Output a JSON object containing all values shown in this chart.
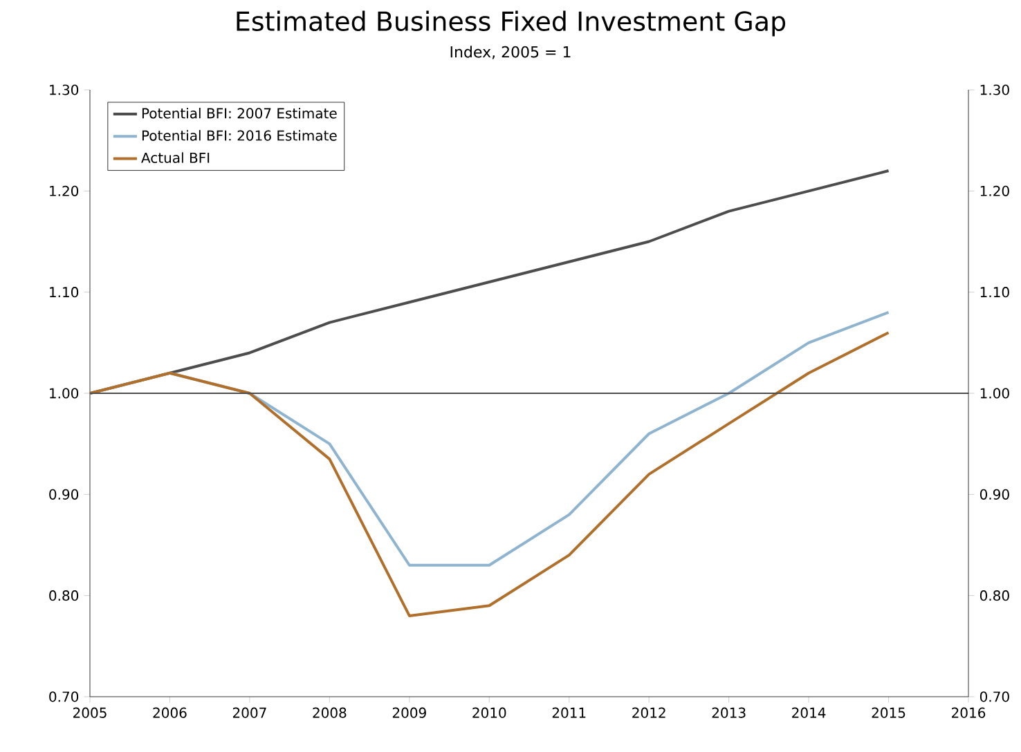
{
  "chart_data": {
    "type": "line",
    "title": "Estimated Business Fixed Investment Gap",
    "subtitle": "Index, 2005 = 1",
    "x": [
      2005,
      2006,
      2007,
      2008,
      2009,
      2010,
      2011,
      2012,
      2013,
      2014,
      2015
    ],
    "series": [
      {
        "name": "Potential BFI: 2007 Estimate",
        "color": "#4d4d4d",
        "values": [
          1.0,
          1.02,
          1.04,
          1.07,
          1.09,
          1.11,
          1.13,
          1.15,
          1.18,
          1.2,
          1.22
        ]
      },
      {
        "name": "Potential BFI: 2016 Estimate",
        "color": "#8fb4d0",
        "values": [
          1.0,
          1.02,
          1.0,
          0.95,
          0.83,
          0.83,
          0.88,
          0.96,
          1.0,
          1.05,
          1.08
        ]
      },
      {
        "name": "Actual BFI",
        "color": "#b0702c",
        "values": [
          1.0,
          1.02,
          1.0,
          0.935,
          0.78,
          0.79,
          0.84,
          0.92,
          0.97,
          1.02,
          1.06
        ]
      }
    ],
    "xlim": [
      2005,
      2016
    ],
    "xticks": [
      2005,
      2006,
      2007,
      2008,
      2009,
      2010,
      2011,
      2012,
      2013,
      2014,
      2015,
      2016
    ],
    "ylim": [
      0.7,
      1.3
    ],
    "yticks": [
      {
        "value": 0.7,
        "label": "0.70"
      },
      {
        "value": 0.8,
        "label": "0.80"
      },
      {
        "value": 0.9,
        "label": "0.90"
      },
      {
        "value": 1.0,
        "label": "1.00"
      },
      {
        "value": 1.1,
        "label": "1.10"
      },
      {
        "value": 1.2,
        "label": "1.20"
      },
      {
        "value": 1.3,
        "label": "1.30"
      }
    ],
    "y2lim": [
      0.7,
      1.3
    ],
    "y2ticks": [
      {
        "value": 0.7,
        "label": "0.70"
      },
      {
        "value": 0.8,
        "label": "0.80"
      },
      {
        "value": 0.9,
        "label": "0.90"
      },
      {
        "value": 1.0,
        "label": "1.00"
      },
      {
        "value": 1.1,
        "label": "1.10"
      },
      {
        "value": 1.2,
        "label": "1.20"
      },
      {
        "value": 1.3,
        "label": "1.30"
      }
    ],
    "ref_lines": [
      {
        "axis": "y",
        "value": 1.0,
        "color": "#4d4d4d"
      }
    ],
    "legend": "top left",
    "marker": "none",
    "line_style": "solid"
  }
}
